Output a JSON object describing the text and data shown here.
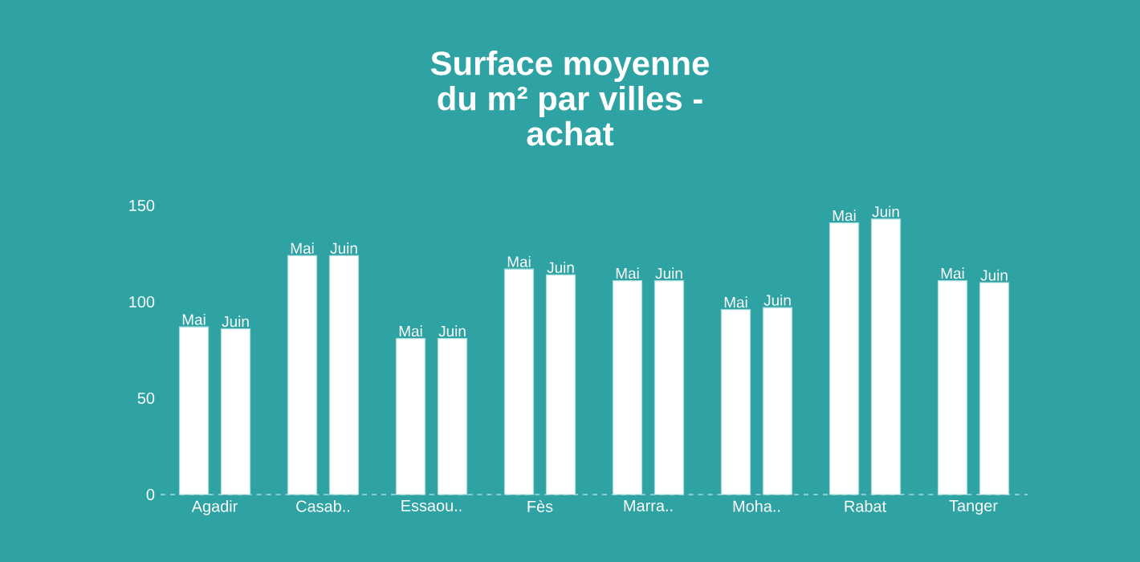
{
  "chart_data": {
    "type": "bar",
    "title": "Surface moyenne\ndu m² par villes -\nachat",
    "categories": [
      "Agadir",
      "Casab..",
      "Essaou..",
      "Fès",
      "Marra..",
      "Moha..",
      "Rabat",
      "Tanger"
    ],
    "series": [
      {
        "name": "Mai",
        "color": "#ffffff",
        "values": [
          87,
          124,
          81,
          117,
          111,
          96,
          141,
          111
        ]
      },
      {
        "name": "Juin",
        "color": "#ffffff",
        "values": [
          86,
          124,
          81,
          114,
          111,
          97,
          143,
          110
        ]
      }
    ],
    "ylim": [
      0,
      150
    ],
    "yticks": [
      0,
      50,
      100,
      150
    ]
  }
}
